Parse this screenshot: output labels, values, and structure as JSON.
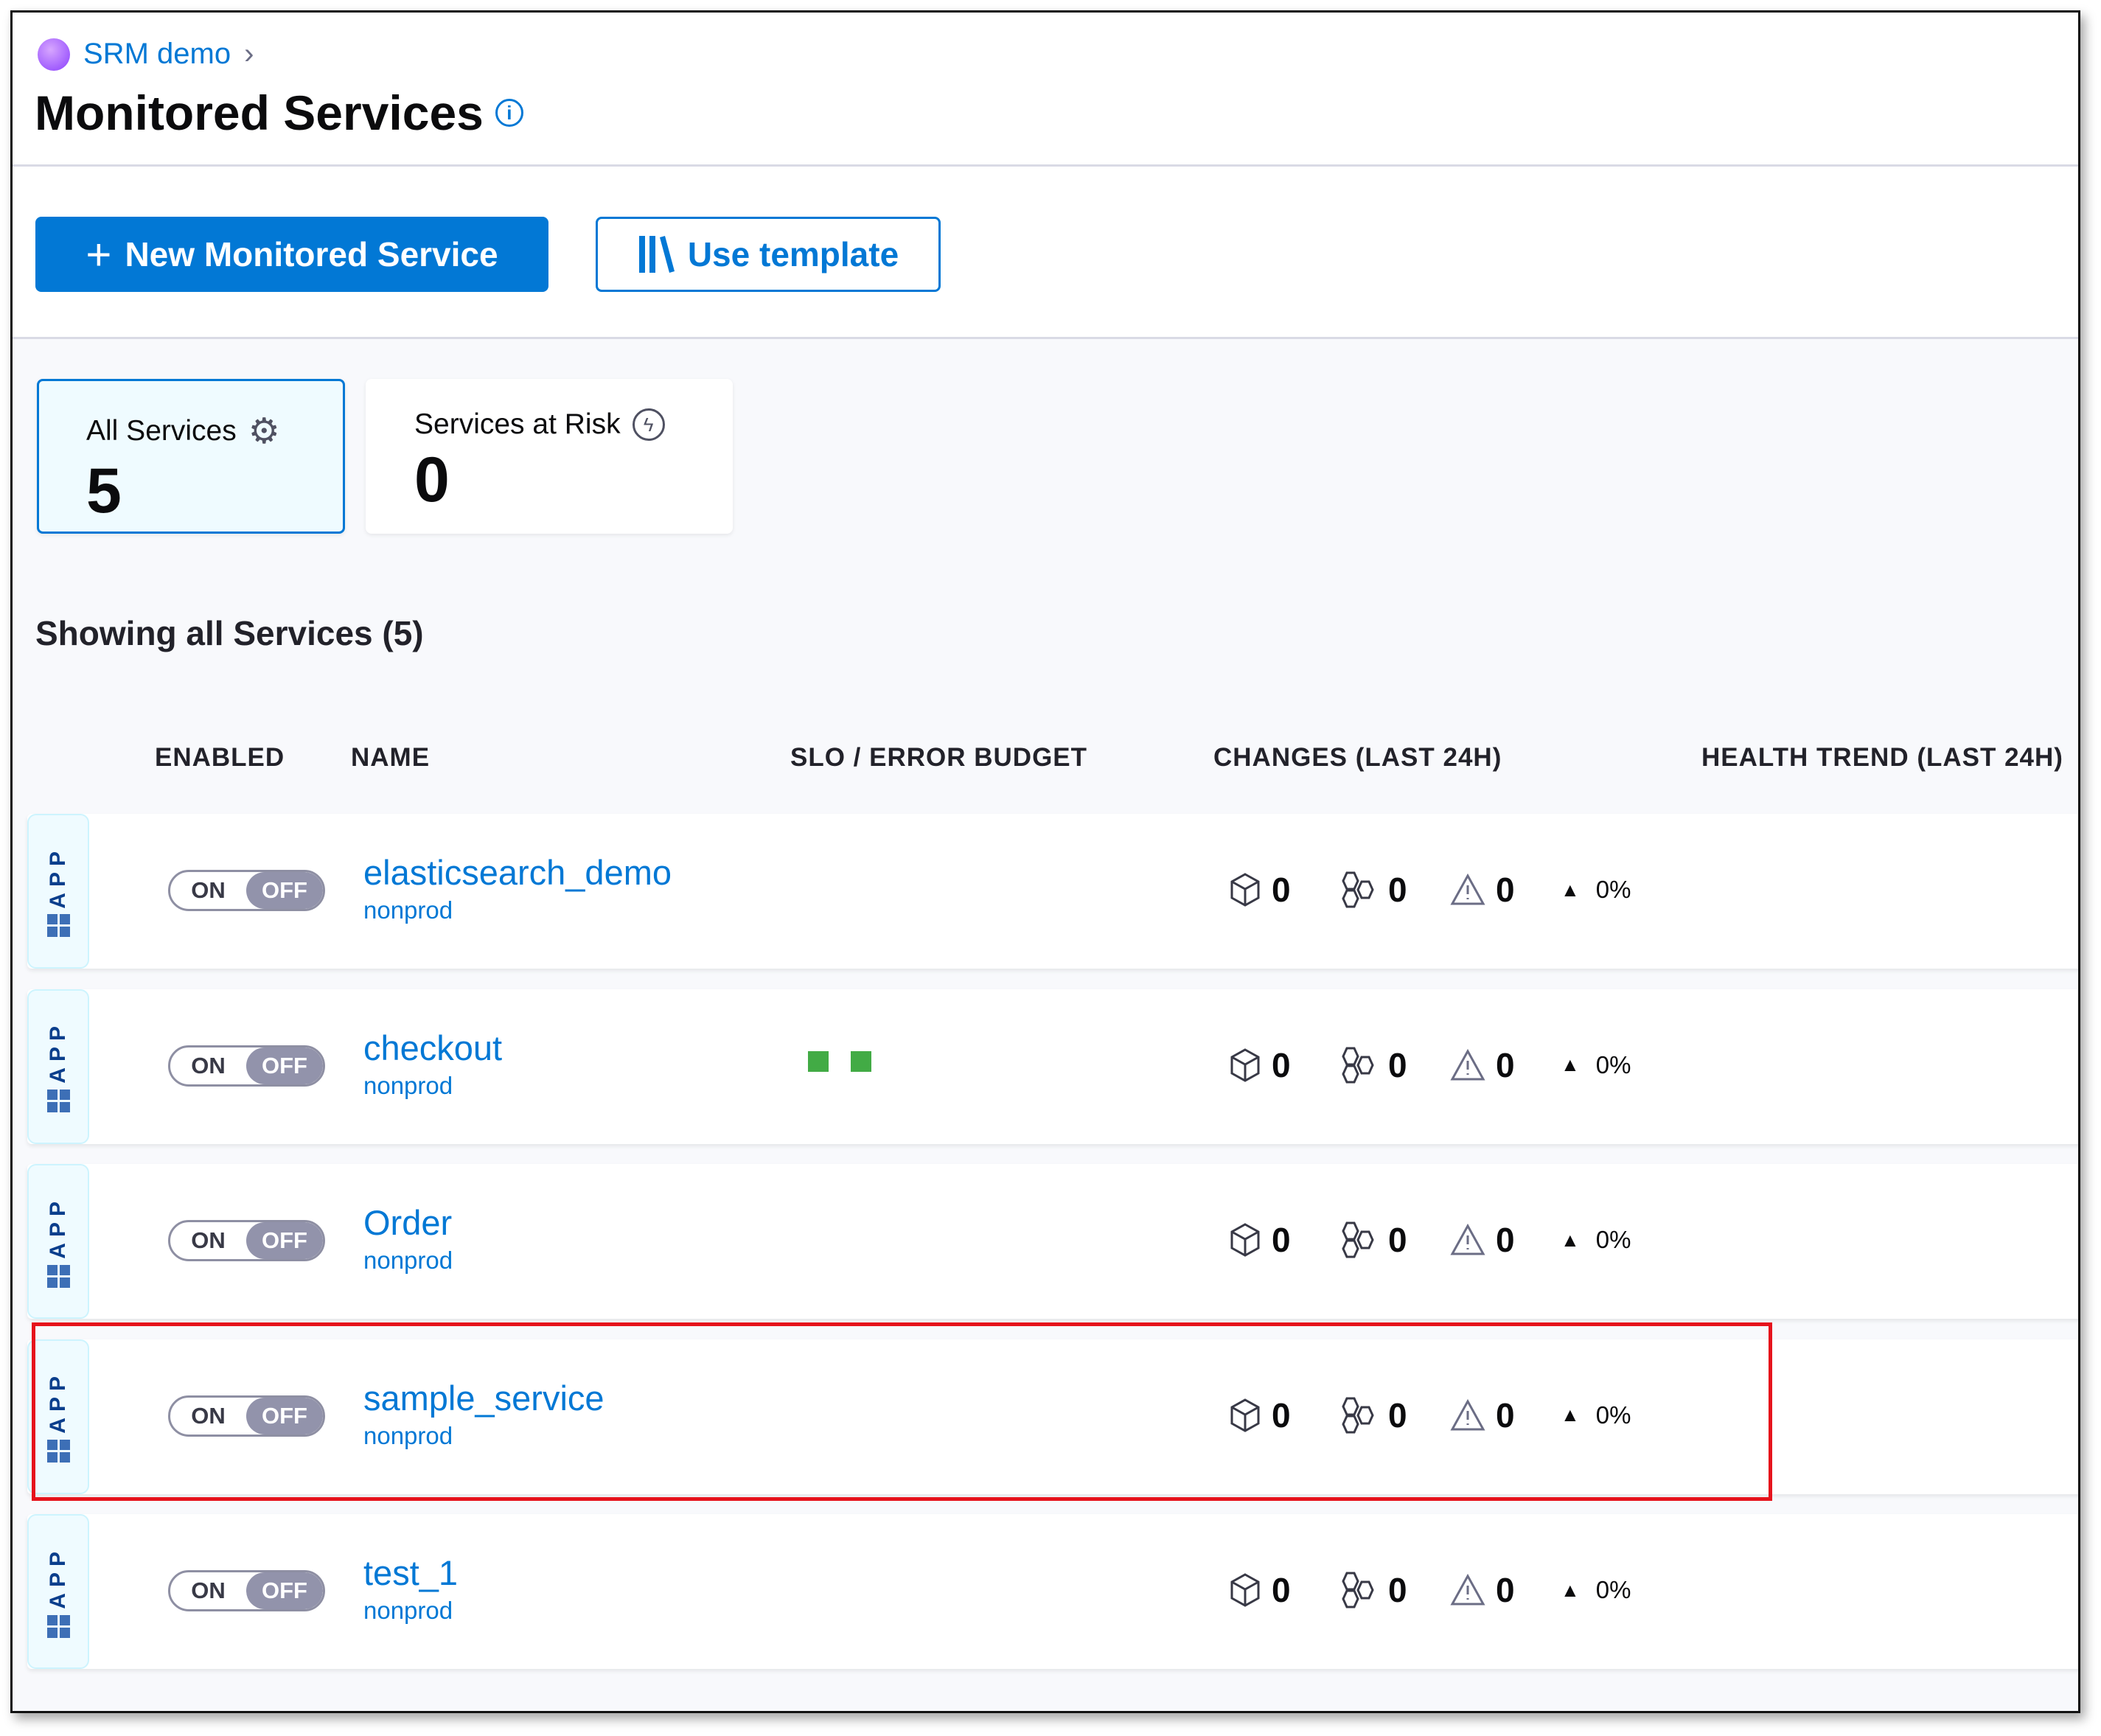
{
  "breadcrumb": {
    "project": "SRM demo"
  },
  "page": {
    "title": "Monitored Services"
  },
  "toolbar": {
    "new_label": "New Monitored Service",
    "template_label": "Use template"
  },
  "summary": {
    "all_label": "All Services",
    "all_count": "5",
    "risk_label": "Services at Risk",
    "risk_count": "0"
  },
  "list": {
    "heading": "Showing all Services (5)",
    "columns": [
      "ENABLED",
      "NAME",
      "SLO / ERROR BUDGET",
      "CHANGES (LAST 24H)",
      "HEALTH TREND (LAST 24H)"
    ],
    "rows": [
      {
        "type": "APP",
        "on": "ON",
        "off": "OFF",
        "name": "elasticsearch_demo",
        "env": "nonprod",
        "deployments": "0",
        "infra": "0",
        "alerts": "0",
        "trend": "0%",
        "slo_blocks": 0
      },
      {
        "type": "APP",
        "on": "ON",
        "off": "OFF",
        "name": "checkout",
        "env": "nonprod",
        "deployments": "0",
        "infra": "0",
        "alerts": "0",
        "trend": "0%",
        "slo_blocks": 2,
        "slo_color": "#42ab45"
      },
      {
        "type": "APP",
        "on": "ON",
        "off": "OFF",
        "name": "Order",
        "env": "nonprod",
        "deployments": "0",
        "infra": "0",
        "alerts": "0",
        "trend": "0%",
        "slo_blocks": 0
      },
      {
        "type": "APP",
        "on": "ON",
        "off": "OFF",
        "name": "sample_service",
        "env": "nonprod",
        "deployments": "0",
        "infra": "0",
        "alerts": "0",
        "trend": "0%",
        "slo_blocks": 0,
        "highlighted": true
      },
      {
        "type": "APP",
        "on": "ON",
        "off": "OFF",
        "name": "test_1",
        "env": "nonprod",
        "deployments": "0",
        "infra": "0",
        "alerts": "0",
        "trend": "0%",
        "slo_blocks": 0
      }
    ]
  },
  "colors": {
    "primary": "#0278d5",
    "highlight": "#e6131c",
    "toggle_off": "#9293ab"
  },
  "icons": {
    "deployments": "cube-icon",
    "infra": "hexagons-icon",
    "alerts": "warning-icon",
    "trend": "triangle-up-icon"
  }
}
